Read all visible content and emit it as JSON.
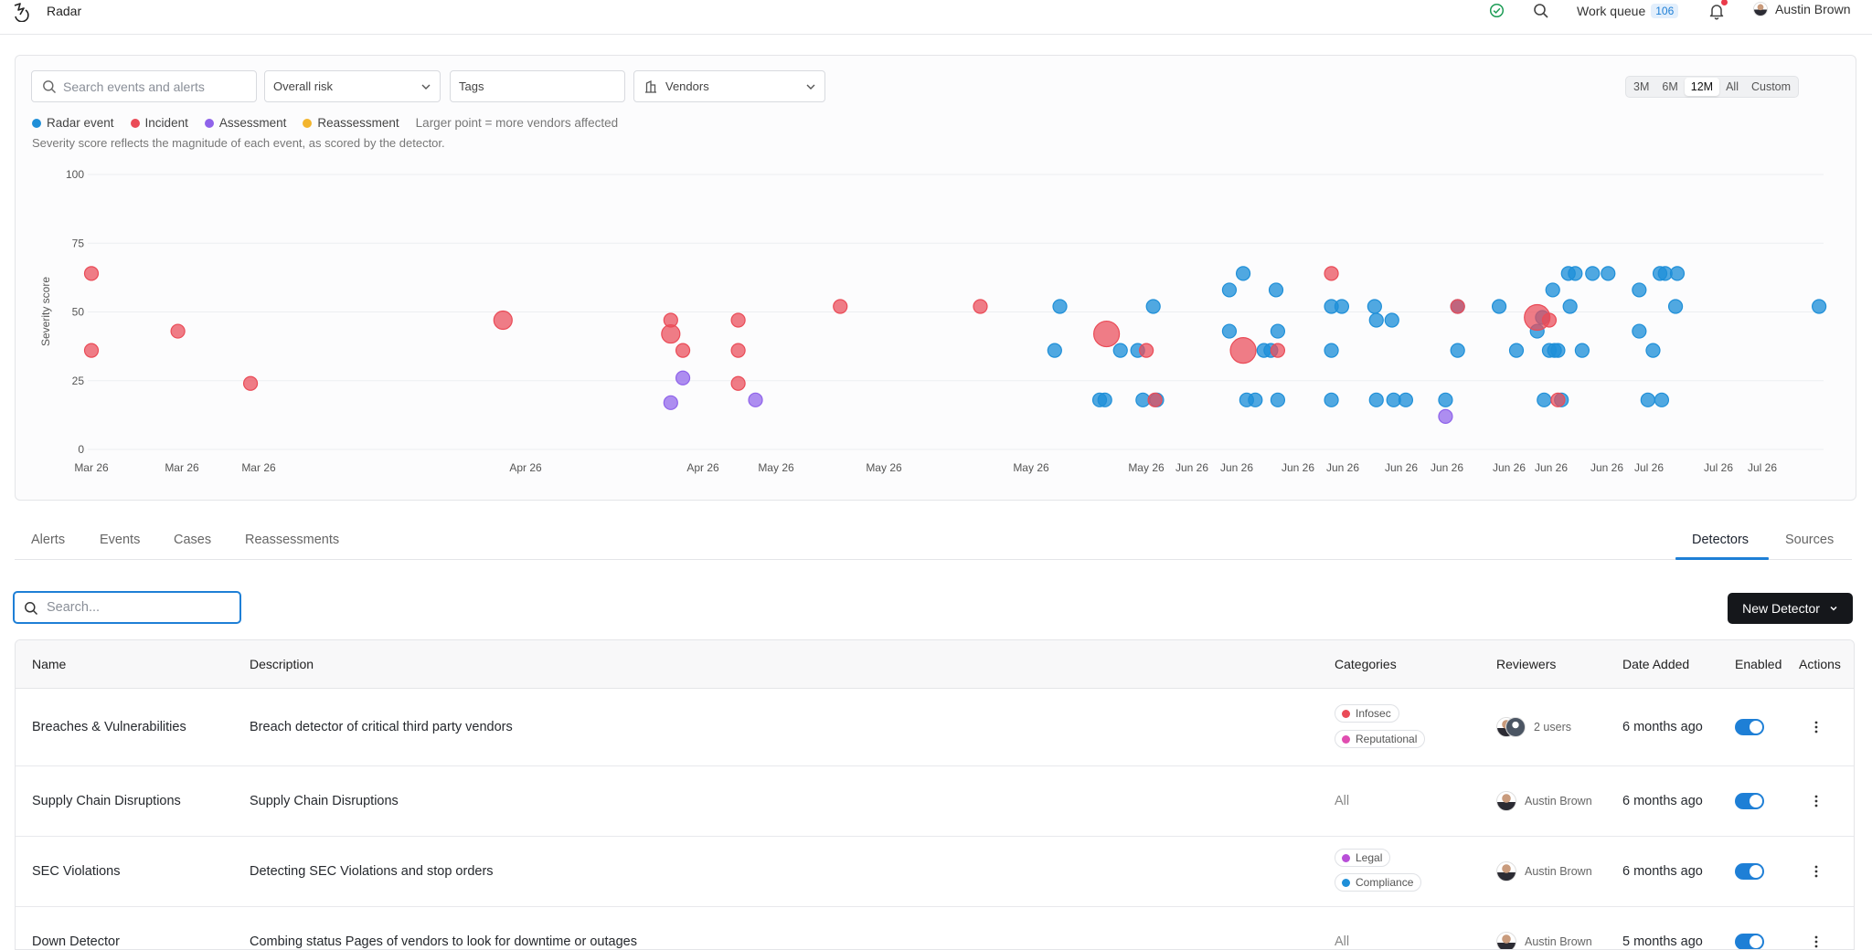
{
  "topbar": {
    "app_title": "Radar",
    "work_queue_label": "Work queue",
    "work_queue_count": "106",
    "user_name": "Austin Brown"
  },
  "filters": {
    "search_placeholder": "Search events and alerts",
    "risk_label": "Overall risk",
    "tags_label": "Tags",
    "vendors_label": "Vendors",
    "ranges": [
      "3M",
      "6M",
      "12M",
      "All",
      "Custom"
    ],
    "active_range": "12M"
  },
  "legend": {
    "items": [
      {
        "label": "Radar event",
        "color": "#1f8fd8"
      },
      {
        "label": "Incident",
        "color": "#ea4b57"
      },
      {
        "label": "Assessment",
        "color": "#8f63ea"
      },
      {
        "label": "Reassessment",
        "color": "#f3b52d"
      }
    ],
    "note": "Larger point = more vendors affected",
    "caption": "Severity score reflects the magnitude of each event, as scored by the detector."
  },
  "chart_data": {
    "type": "scatter",
    "ylabel": "Severity score",
    "ylim": [
      0,
      100
    ],
    "yticks": [
      0,
      25,
      50,
      75,
      100
    ],
    "x_tick_labels": [
      "Mar 26",
      "Mar 26",
      "Mar 26",
      "Apr 26",
      "Apr 26",
      "May 26",
      "May 26",
      "May 26",
      "May 26",
      "Jun 26",
      "Jun 26",
      "Jun 26",
      "Jun 26",
      "Jun 26",
      "Jun 26",
      "Jun 26",
      "Jun 26",
      "Jun 26",
      "Jul 26",
      "Jul 26",
      "Jul 26"
    ],
    "x_range": [
      0,
      1000
    ],
    "series": [
      {
        "name": "Radar event",
        "color": "#1f8fd8",
        "points": [
          [
            557,
            36,
            1
          ],
          [
            560,
            52,
            1
          ],
          [
            583,
            18,
            1
          ],
          [
            586,
            18,
            1
          ],
          [
            595,
            36,
            1
          ],
          [
            605,
            36,
            1
          ],
          [
            608,
            18,
            1
          ],
          [
            614,
            52,
            1
          ],
          [
            616,
            18,
            1
          ],
          [
            658,
            43,
            1
          ],
          [
            658,
            58,
            1
          ],
          [
            666,
            64,
            1
          ],
          [
            668,
            18,
            1
          ],
          [
            673,
            18,
            1
          ],
          [
            678,
            36,
            1
          ],
          [
            682,
            36,
            1
          ],
          [
            685,
            58,
            1
          ],
          [
            686,
            43,
            1
          ],
          [
            686,
            18,
            1
          ],
          [
            717,
            36,
            1
          ],
          [
            717,
            52,
            1
          ],
          [
            717,
            18,
            1
          ],
          [
            723,
            52,
            1
          ],
          [
            742,
            52,
            1
          ],
          [
            743,
            47,
            1
          ],
          [
            743,
            18,
            1
          ],
          [
            752,
            47,
            1
          ],
          [
            753,
            18,
            1
          ],
          [
            760,
            18,
            1
          ],
          [
            783,
            18,
            1
          ],
          [
            790,
            52,
            1
          ],
          [
            790,
            36,
            1
          ],
          [
            814,
            52,
            1
          ],
          [
            824,
            36,
            1
          ],
          [
            836,
            43,
            1
          ],
          [
            839,
            48,
            1
          ],
          [
            840,
            18,
            1
          ],
          [
            843,
            36,
            1
          ],
          [
            845,
            58,
            1
          ],
          [
            846,
            36,
            1
          ],
          [
            848,
            36,
            1
          ],
          [
            850,
            18,
            1
          ],
          [
            854,
            64,
            1
          ],
          [
            855,
            52,
            1
          ],
          [
            858,
            64,
            1
          ],
          [
            862,
            36,
            1
          ],
          [
            868,
            64,
            1
          ],
          [
            877,
            64,
            1
          ],
          [
            895,
            58,
            1
          ],
          [
            895,
            43,
            1
          ],
          [
            900,
            18,
            1
          ],
          [
            903,
            36,
            1
          ],
          [
            907,
            64,
            1
          ],
          [
            908,
            18,
            1
          ],
          [
            910,
            64,
            1
          ],
          [
            916,
            52,
            1
          ],
          [
            917,
            64,
            1
          ],
          [
            999,
            52,
            1
          ]
        ]
      },
      {
        "name": "Incident",
        "color": "#ea4b57",
        "points": [
          [
            0,
            64,
            1
          ],
          [
            0,
            36,
            1
          ],
          [
            50,
            43,
            1
          ],
          [
            92,
            24,
            1
          ],
          [
            238,
            47,
            2
          ],
          [
            335,
            47,
            1
          ],
          [
            335,
            42,
            2
          ],
          [
            342,
            36,
            1
          ],
          [
            374,
            47,
            1
          ],
          [
            374,
            36,
            1
          ],
          [
            374,
            24,
            1
          ],
          [
            433,
            52,
            1
          ],
          [
            514,
            52,
            1
          ],
          [
            587,
            42,
            3
          ],
          [
            610,
            36,
            1
          ],
          [
            615,
            18,
            1
          ],
          [
            666,
            36,
            3
          ],
          [
            686,
            36,
            1
          ],
          [
            717,
            64,
            1
          ],
          [
            790,
            52,
            1
          ],
          [
            836,
            48,
            3
          ],
          [
            843,
            47,
            1
          ],
          [
            848,
            18,
            1
          ]
        ]
      },
      {
        "name": "Assessment",
        "color": "#8f63ea",
        "points": [
          [
            335,
            17,
            1
          ],
          [
            342,
            26,
            1
          ],
          [
            384,
            18,
            1
          ],
          [
            783,
            12,
            1
          ]
        ]
      },
      {
        "name": "Reassessment",
        "color": "#f3b52d",
        "points": []
      }
    ]
  },
  "tabs": {
    "left": [
      "Alerts",
      "Events",
      "Cases",
      "Reassessments"
    ],
    "right": [
      "Detectors",
      "Sources"
    ],
    "active": "Detectors"
  },
  "table_search": {
    "placeholder": "Search..."
  },
  "new_detector_label": "New Detector",
  "table": {
    "headers": [
      "Name",
      "Description",
      "Categories",
      "Reviewers",
      "Date Added",
      "Enabled",
      "Actions"
    ],
    "rows": [
      {
        "name": "Breaches & Vulnerabilities",
        "description": "Breach detector of critical third party vendors",
        "categories": [
          {
            "label": "Infosec",
            "color": "#ea4b57"
          },
          {
            "label": "Reputational",
            "color": "#e04db0"
          }
        ],
        "reviewers": "2 users",
        "date_added": "6 months ago",
        "enabled": true
      },
      {
        "name": "Supply Chain Disruptions",
        "description": "Supply Chain Disruptions",
        "categories_text": "All",
        "reviewers": "Austin Brown",
        "date_added": "6 months ago",
        "enabled": true
      },
      {
        "name": "SEC Violations",
        "description": "Detecting SEC Violations and stop orders",
        "categories": [
          {
            "label": "Legal",
            "color": "#b84fd8"
          },
          {
            "label": "Compliance",
            "color": "#1f8fd8"
          }
        ],
        "reviewers": "Austin Brown",
        "date_added": "6 months ago",
        "enabled": true
      },
      {
        "name": "Down Detector",
        "description": "Combing status Pages of vendors to look for downtime or outages",
        "categories_text": "All",
        "reviewers": "Austin Brown",
        "date_added": "5 months ago",
        "enabled": true
      }
    ]
  }
}
